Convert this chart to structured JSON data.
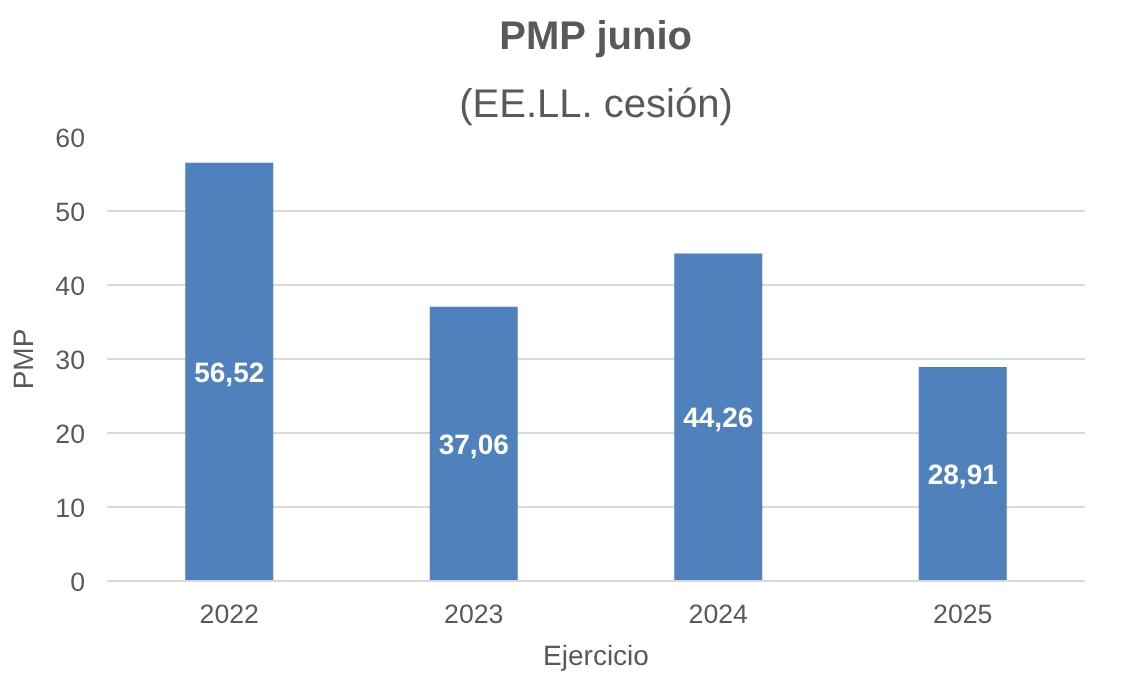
{
  "chart_data": {
    "type": "bar",
    "title": "PMP junio",
    "subtitle": "(EE.LL. cesión)",
    "xlabel": "Ejercicio",
    "ylabel": "PMP",
    "categories": [
      "2022",
      "2023",
      "2024",
      "2025"
    ],
    "values": [
      56.52,
      37.06,
      44.26,
      28.91
    ],
    "value_labels": [
      "56,52",
      "37,06",
      "44,26",
      "28,91"
    ],
    "color": "#4f81bd",
    "ylim": [
      0,
      60
    ],
    "yticks": [
      0,
      10,
      20,
      30,
      40,
      50,
      60
    ],
    "grid": "y"
  }
}
